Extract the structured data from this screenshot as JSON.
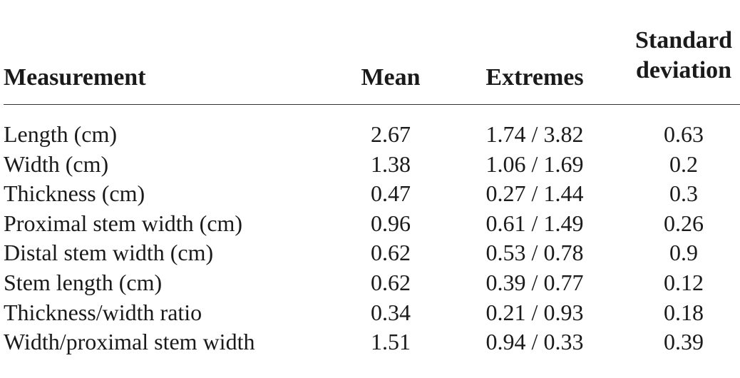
{
  "table": {
    "headers": {
      "measurement": "Measurement",
      "mean": "Mean",
      "extremes": "Extremes",
      "sd_line1": "Standard",
      "sd_line2": "deviation"
    },
    "rows": [
      {
        "measurement": "Length (cm)",
        "mean": "2.67",
        "extremes": "1.74 / 3.82",
        "sd": "0.63"
      },
      {
        "measurement": "Width (cm)",
        "mean": "1.38",
        "extremes": "1.06 / 1.69",
        "sd": "0.2"
      },
      {
        "measurement": "Thickness (cm)",
        "mean": "0.47",
        "extremes": "0.27 / 1.44",
        "sd": "0.3"
      },
      {
        "measurement": "Proximal stem width (cm)",
        "mean": "0.96",
        "extremes": "0.61 / 1.49",
        "sd": "0.26"
      },
      {
        "measurement": "Distal stem width (cm)",
        "mean": "0.62",
        "extremes": "0.53 / 0.78",
        "sd": "0.9"
      },
      {
        "measurement": "Stem length (cm)",
        "mean": "0.62",
        "extremes": "0.39 / 0.77",
        "sd": "0.12"
      },
      {
        "measurement": "Thickness/width ratio",
        "mean": "0.34",
        "extremes": "0.21 / 0.93",
        "sd": "0.18"
      },
      {
        "measurement": "Width/proximal stem width",
        "mean": "1.51",
        "extremes": "0.94 / 0.33",
        "sd": "0.39"
      }
    ]
  }
}
